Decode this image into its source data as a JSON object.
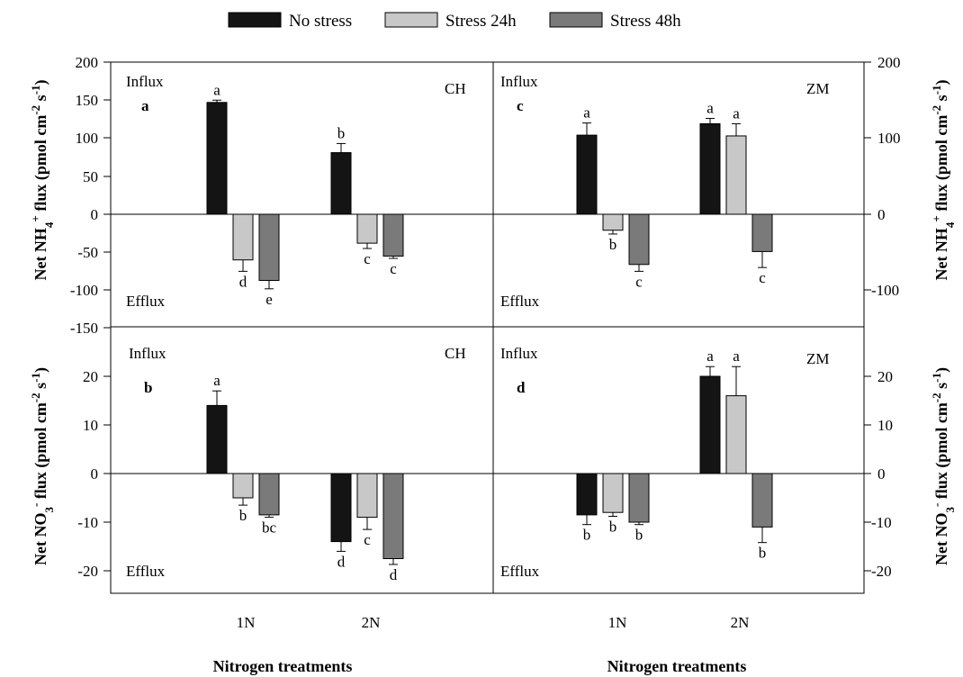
{
  "legend": {
    "items": [
      {
        "label": "No stress",
        "color": "#141414"
      },
      {
        "label": "Stress 24h",
        "color": "#c8c8c8"
      },
      {
        "label": "Stress 48h",
        "color": "#7a7a7a"
      }
    ]
  },
  "axes": {
    "xlabel_left": "Nitrogen treatments",
    "xlabel_right": "Nitrogen treatments",
    "ylabel_top_left": "Net NH4+ flux (pmol cm-2 s-1)",
    "ylabel_bottom_left": "Net NO3- flux (pmol cm-2 s-1)",
    "ylabel_top_right": "Net NH4+ flux (pmol cm-2 s-1)",
    "ylabel_bottom_right": "Net NO3- flux (pmol cm-2 s-1)",
    "top_ticks_left": [
      "200",
      "150",
      "100",
      "50",
      "0",
      "-50",
      "-100",
      "-150"
    ],
    "top_ticks_right": [
      "200",
      "100",
      "0",
      "-100"
    ],
    "bottom_ticks": [
      "20",
      "10",
      "0",
      "-10",
      "-20"
    ]
  },
  "chart_data": [
    {
      "id": "a",
      "type": "bar",
      "cultivar": "CH",
      "influx_label": "Influx",
      "efflux_label": "Efflux",
      "categories": [
        "1N",
        "2N"
      ],
      "ylim": [
        -150,
        200
      ],
      "series": [
        {
          "name": "No stress",
          "values": [
            147,
            81
          ],
          "errors": [
            3,
            12
          ],
          "letters": [
            "a",
            "b"
          ]
        },
        {
          "name": "Stress 24h",
          "values": [
            -60,
            -38
          ],
          "errors": [
            15,
            7
          ],
          "letters": [
            "d",
            "c"
          ]
        },
        {
          "name": "Stress 48h",
          "values": [
            -87,
            -55
          ],
          "errors": [
            11,
            3
          ],
          "letters": [
            "e",
            "c"
          ]
        }
      ]
    },
    {
      "id": "b",
      "type": "bar",
      "cultivar": "CH",
      "influx_label": "Influx",
      "efflux_label": "Efflux",
      "categories": [
        "1N",
        "2N"
      ],
      "ylim": [
        -25,
        25
      ],
      "series": [
        {
          "name": "No stress",
          "values": [
            14,
            -14
          ],
          "errors": [
            3,
            2
          ],
          "letters": [
            "a",
            "d"
          ]
        },
        {
          "name": "Stress 24h",
          "values": [
            -5,
            -9
          ],
          "errors": [
            1.5,
            2.5
          ],
          "letters": [
            "b",
            "c"
          ]
        },
        {
          "name": "Stress 48h",
          "values": [
            -8.5,
            -17.5
          ],
          "errors": [
            0.5,
            1.2
          ],
          "letters": [
            "bc",
            "d"
          ]
        }
      ]
    },
    {
      "id": "c",
      "type": "bar",
      "cultivar": "ZM",
      "influx_label": "Influx",
      "efflux_label": "Efflux",
      "categories": [
        "1N",
        "2N"
      ],
      "ylim": [
        -150,
        200
      ],
      "series": [
        {
          "name": "No stress",
          "values": [
            104,
            119
          ],
          "errors": [
            16,
            7
          ],
          "letters": [
            "a",
            "a"
          ]
        },
        {
          "name": "Stress 24h",
          "values": [
            -21,
            103
          ],
          "errors": [
            5,
            16
          ],
          "letters": [
            "b",
            "a"
          ]
        },
        {
          "name": "Stress 48h",
          "values": [
            -66,
            -49
          ],
          "errors": [
            9,
            21
          ],
          "letters": [
            "c",
            "c"
          ]
        }
      ]
    },
    {
      "id": "d",
      "type": "bar",
      "cultivar": "ZM",
      "influx_label": "Influx",
      "efflux_label": "Efflux",
      "categories": [
        "1N",
        "2N"
      ],
      "ylim": [
        -25,
        25
      ],
      "series": [
        {
          "name": "No stress",
          "values": [
            -8.5,
            20
          ],
          "errors": [
            2,
            2
          ],
          "letters": [
            "b",
            "a"
          ]
        },
        {
          "name": "Stress 24h",
          "values": [
            -8,
            16
          ],
          "errors": [
            0.8,
            6
          ],
          "letters": [
            "b",
            "a"
          ]
        },
        {
          "name": "Stress 48h",
          "values": [
            -10,
            -11
          ],
          "errors": [
            0.5,
            3.2
          ],
          "letters": [
            "b",
            "b"
          ]
        }
      ]
    }
  ]
}
